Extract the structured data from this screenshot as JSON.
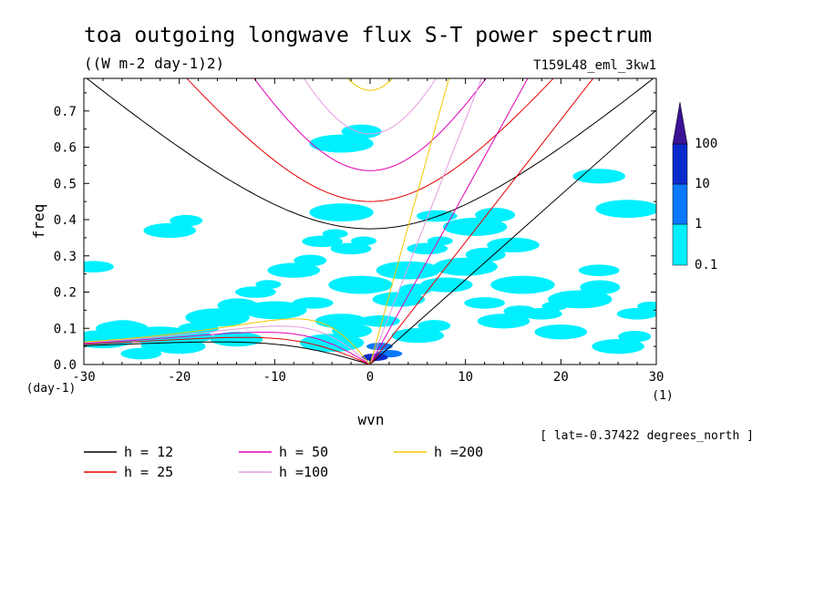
{
  "chart_data": {
    "type": "heatmap",
    "title": "toa outgoing longwave flux S-T power spectrum",
    "subtitle": "((W m-2 day-1)2)",
    "run_label": "T159L48_eml_3kw1",
    "xlabel": "wvn",
    "ylabel": "freq",
    "x_unit_label": "(1)",
    "y_unit_label": "(day-1)",
    "footnote": "[ lat=-0.37422 degrees_north ]",
    "xlim": [
      -30,
      30
    ],
    "ylim": [
      0,
      0.79
    ],
    "x_ticks": [
      -30,
      -20,
      -10,
      0,
      10,
      20,
      30
    ],
    "x_tick_labels": [
      "-30",
      "-20",
      "-10",
      "0",
      "10",
      "20",
      "30"
    ],
    "y_ticks": [
      0.0,
      0.1,
      0.2,
      0.3,
      0.4,
      0.5,
      0.6,
      0.7
    ],
    "y_tick_labels": [
      "0.0",
      "0.1",
      "0.2",
      "0.3",
      "0.4",
      "0.5",
      "0.6",
      "0.7"
    ],
    "colorbar": {
      "levels": [
        "0.1",
        "1",
        "10",
        "100"
      ],
      "colors": [
        "#00f0ff",
        "#0a78ff",
        "#0a2bcc",
        "#3c1296"
      ]
    },
    "dispersion_curves": [
      {
        "label": "h = 12",
        "h": 12,
        "color": "#000000"
      },
      {
        "label": "h = 25",
        "h": 25,
        "color": "#e60000"
      },
      {
        "label": "h = 50",
        "h": 50,
        "color": "#e000b4"
      },
      {
        "label": "h =100",
        "h": 100,
        "color": "#e49be0"
      },
      {
        "label": "h =200",
        "h": 200,
        "color": "#f0c800"
      }
    ],
    "spectrum_blobs": [
      {
        "x": 1,
        "y": 0.05,
        "level": 2
      },
      {
        "x": 2,
        "y": 0.03,
        "level": 2
      },
      {
        "x": 0.5,
        "y": 0.02,
        "level": 3
      },
      {
        "x": 1,
        "y": 0.12,
        "level": 1
      },
      {
        "x": 3,
        "y": 0.18,
        "level": 1
      },
      {
        "x": 4,
        "y": 0.26,
        "level": 1
      },
      {
        "x": 6,
        "y": 0.32,
        "level": 1
      },
      {
        "x": 8,
        "y": 0.22,
        "level": 1
      },
      {
        "x": 10,
        "y": 0.27,
        "level": 1
      },
      {
        "x": 12,
        "y": 0.17,
        "level": 1
      },
      {
        "x": 14,
        "y": 0.12,
        "level": 1
      },
      {
        "x": 16,
        "y": 0.22,
        "level": 1
      },
      {
        "x": 18,
        "y": 0.14,
        "level": 1
      },
      {
        "x": 20,
        "y": 0.09,
        "level": 1
      },
      {
        "x": 22,
        "y": 0.18,
        "level": 1
      },
      {
        "x": 24,
        "y": 0.26,
        "level": 1
      },
      {
        "x": 26,
        "y": 0.05,
        "level": 1
      },
      {
        "x": 27,
        "y": 0.43,
        "level": 1
      },
      {
        "x": 28,
        "y": 0.14,
        "level": 1
      },
      {
        "x": 15,
        "y": 0.33,
        "level": 1
      },
      {
        "x": 11,
        "y": 0.38,
        "level": 1
      },
      {
        "x": 7,
        "y": 0.41,
        "level": 1
      },
      {
        "x": 5,
        "y": 0.08,
        "level": 1
      },
      {
        "x": -1,
        "y": 0.22,
        "level": 1
      },
      {
        "x": -2,
        "y": 0.32,
        "level": 1
      },
      {
        "x": -3,
        "y": 0.12,
        "level": 1
      },
      {
        "x": -4,
        "y": 0.06,
        "level": 1
      },
      {
        "x": -6,
        "y": 0.17,
        "level": 1
      },
      {
        "x": -8,
        "y": 0.26,
        "level": 1
      },
      {
        "x": -10,
        "y": 0.15,
        "level": 1
      },
      {
        "x": -12,
        "y": 0.2,
        "level": 1
      },
      {
        "x": -14,
        "y": 0.07,
        "level": 1
      },
      {
        "x": -16,
        "y": 0.13,
        "level": 1
      },
      {
        "x": -18,
        "y": 0.1,
        "level": 1
      },
      {
        "x": -20,
        "y": 0.05,
        "level": 1
      },
      {
        "x": -22,
        "y": 0.08,
        "level": 1
      },
      {
        "x": -24,
        "y": 0.03,
        "level": 1
      },
      {
        "x": -26,
        "y": 0.1,
        "level": 1
      },
      {
        "x": -28,
        "y": 0.07,
        "level": 1
      },
      {
        "x": -29,
        "y": 0.27,
        "level": 1
      },
      {
        "x": -21,
        "y": 0.37,
        "level": 1
      },
      {
        "x": -3,
        "y": 0.42,
        "level": 1
      },
      {
        "x": -5,
        "y": 0.34,
        "level": 1
      },
      {
        "x": 24,
        "y": 0.52,
        "level": 1
      },
      {
        "x": -3,
        "y": 0.61,
        "level": 1
      }
    ]
  }
}
